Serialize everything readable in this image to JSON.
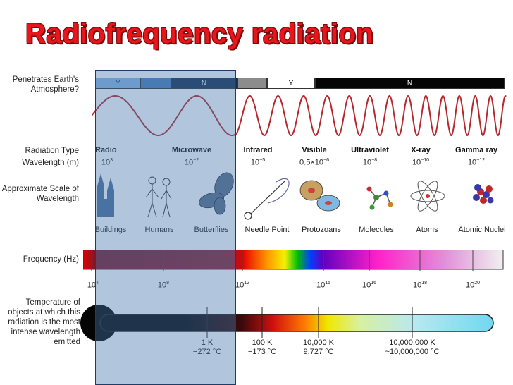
{
  "title": "Radiofrequency radiation",
  "labels": {
    "penetrates": "Penetrates Earth's Atmosphere?",
    "radiation_type": "Radiation Type",
    "wavelength": "Wavelength (m)",
    "scale": "Approximate Scale of Wavelength",
    "frequency": "Frequency (Hz)",
    "temperature": "Temperature of objects at which this radiation is the most intense wavelength emitted"
  },
  "penetration_bar": {
    "seg1": "Y",
    "seg2": "N",
    "seg3": "Y",
    "seg4": "N"
  },
  "radiation_types": [
    {
      "name": "Radio",
      "wl_base": "10",
      "wl_exp": "3"
    },
    {
      "name": "Microwave",
      "wl_base": "10",
      "wl_exp": "−2"
    },
    {
      "name": "Infrared",
      "wl_base": "10",
      "wl_exp": "−5"
    },
    {
      "name": "Visible",
      "wl_base": "0.5×10",
      "wl_exp": "−6"
    },
    {
      "name": "Ultraviolet",
      "wl_base": "10",
      "wl_exp": "−8"
    },
    {
      "name": "X-ray",
      "wl_base": "10",
      "wl_exp": "−10"
    },
    {
      "name": "Gamma ray",
      "wl_base": "10",
      "wl_exp": "−12"
    }
  ],
  "scale_objects": [
    "Buildings",
    "Humans",
    "Butterflies",
    "Needle Point",
    "Protozoans",
    "Molecules",
    "Atoms",
    "Atomic Nuclei"
  ],
  "frequency_ticks": [
    {
      "base": "10",
      "exp": "4"
    },
    {
      "base": "10",
      "exp": "8"
    },
    {
      "base": "10",
      "exp": "12"
    },
    {
      "base": "10",
      "exp": "15"
    },
    {
      "base": "10",
      "exp": "16"
    },
    {
      "base": "10",
      "exp": "18"
    },
    {
      "base": "10",
      "exp": "20"
    }
  ],
  "temperatures": [
    {
      "k": "1 K",
      "c": "−272 °C"
    },
    {
      "k": "100 K",
      "c": "−173 °C"
    },
    {
      "k": "10,000 K",
      "c": "9,727 °C"
    },
    {
      "k": "10,000,000 K",
      "c": "~10,000,000 °C"
    }
  ],
  "colors": {
    "title": "#e8151b",
    "wave": "#b5282d",
    "overlay": "#4678af"
  }
}
